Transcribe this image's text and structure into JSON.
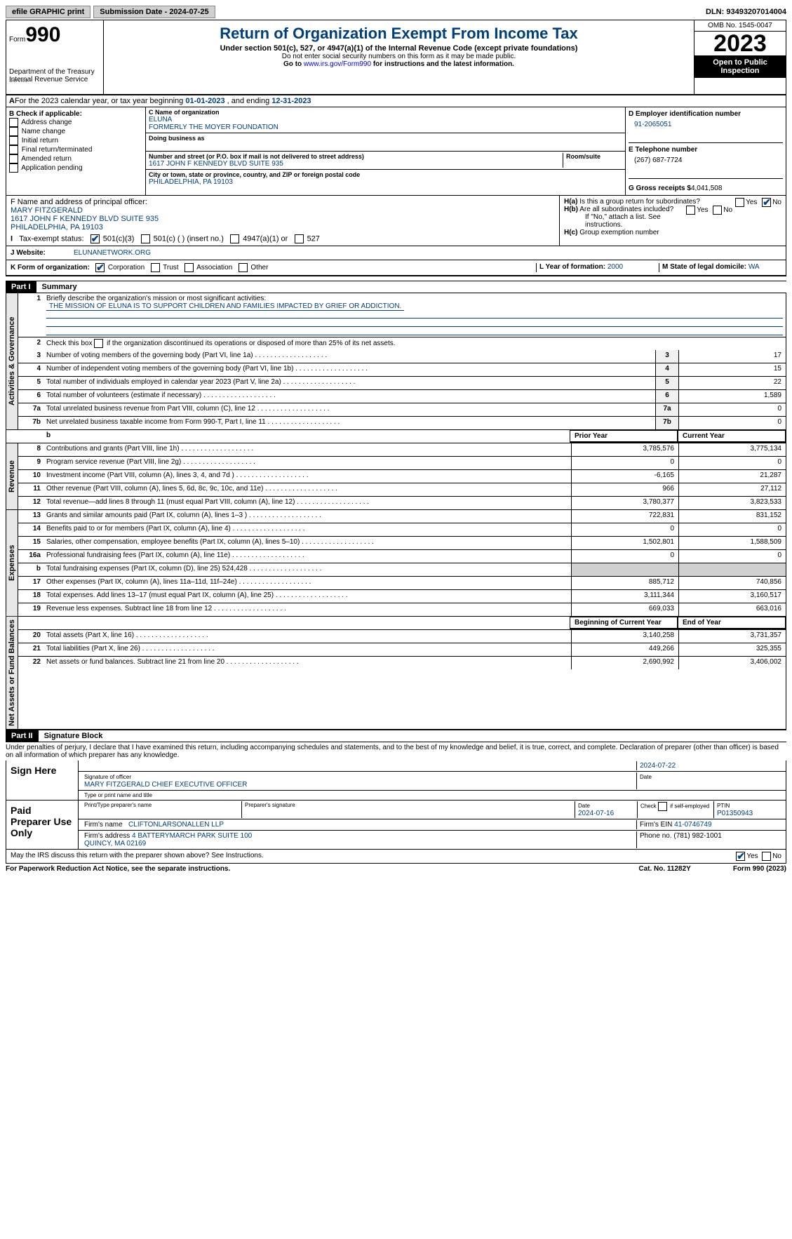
{
  "topbar": {
    "efile": "efile GRAPHIC print",
    "submission": "Submission Date - 2024-07-25",
    "dln": "DLN: 93493207014004"
  },
  "header": {
    "form": "990",
    "formPrefix": "Form",
    "dept": "Department of the Treasury\nInternal Revenue Service",
    "title": "Return of Organization Exempt From Income Tax",
    "sub": "Under section 501(c), 527, or 4947(a)(1) of the Internal Revenue Code (except private foundations)",
    "note1": "Do not enter social security numbers on this form as it may be made public.",
    "note2": "Go to ",
    "link": "www.irs.gov/Form990",
    "note3": " for instructions and the latest information.",
    "omb": "OMB No. 1545-0047",
    "year": "2023",
    "inspect": "Open to Public Inspection"
  },
  "A": {
    "prefix": "A",
    "text": "For the 2023 calendar year, or tax year beginning ",
    "d1": "01-01-2023",
    "mid": " , and ending ",
    "d2": "12-31-2023"
  },
  "B": {
    "label": "B Check if applicable:",
    "items": [
      "Address change",
      "Name change",
      "Initial return",
      "Final return/terminated",
      "Amended return",
      "Application pending"
    ]
  },
  "C": {
    "nameLabel": "C Name of organization",
    "name": "ELUNA\nFORMERLY THE MOYER FOUNDATION",
    "dba": "Doing business as",
    "addrLabel": "Number and street (or P.O. box if mail is not delivered to street address)",
    "addr": "1617 JOHN F KENNEDY BLVD SUITE 935",
    "room": "Room/suite",
    "cityLabel": "City or town, state or province, country, and ZIP or foreign postal code",
    "city": "PHILADELPHIA, PA  19103"
  },
  "D": {
    "label": "D Employer identification number",
    "val": "91-2065051"
  },
  "E": {
    "label": "E Telephone number",
    "val": "(267) 687-7724"
  },
  "G": {
    "label": "G Gross receipts $",
    "val": "4,041,508"
  },
  "F": {
    "label": "F  Name and address of principal officer:",
    "val": "MARY FITZGERALD\n1617 JOHN F KENNEDY BLVD SUITE 935\nPHILADELPHIA, PA  19103"
  },
  "H": {
    "a": "H(a)  Is this a group return for subordinates?",
    "b": "H(b)  Are all subordinates included?",
    "note": "If \"No,\" attach a list. See instructions.",
    "c": "H(c)  Group exemption number",
    "yes": "Yes",
    "no": "No"
  },
  "I": {
    "label": "I   Tax-exempt status:",
    "opts": [
      "501(c)(3)",
      "501(c) (  ) (insert no.)",
      "4947(a)(1) or",
      "527"
    ]
  },
  "J": {
    "label": "J   Website:",
    "val": "ELUNANETWORK.ORG"
  },
  "K": {
    "label": "K Form of organization:",
    "opts": [
      "Corporation",
      "Trust",
      "Association",
      "Other"
    ]
  },
  "L": {
    "label": "L Year of formation: ",
    "val": "2000"
  },
  "M": {
    "label": "M State of legal domicile: ",
    "val": "WA"
  },
  "part1": {
    "hdr": "Part I",
    "title": "Summary"
  },
  "gov": {
    "label": "Activities & Governance",
    "l1": "Briefly describe the organization's mission or most significant activities:",
    "mission": "THE MISSION OF ELUNA IS TO SUPPORT CHILDREN AND FAMILIES IMPACTED BY GRIEF OR ADDICTION.",
    "l2": "Check this box      if the organization discontinued its operations or disposed of more than 25% of its net assets.",
    "rows": [
      {
        "n": "3",
        "t": "Number of voting members of the governing body (Part VI, line 1a)",
        "v": "17"
      },
      {
        "n": "4",
        "t": "Number of independent voting members of the governing body (Part VI, line 1b)",
        "v": "15"
      },
      {
        "n": "5",
        "t": "Total number of individuals employed in calendar year 2023 (Part V, line 2a)",
        "v": "22"
      },
      {
        "n": "6",
        "t": "Total number of volunteers (estimate if necessary)",
        "v": "1,589"
      },
      {
        "n": "7a",
        "t": "Total unrelated business revenue from Part VIII, column (C), line 12",
        "v": "0"
      },
      {
        "n": "7b",
        "t": "Net unrelated business taxable income from Form 990-T, Part I, line 11",
        "v": "0"
      }
    ]
  },
  "colHdr": {
    "prior": "Prior Year",
    "current": "Current Year"
  },
  "rev": {
    "label": "Revenue",
    "rows": [
      {
        "n": "8",
        "t": "Contributions and grants (Part VIII, line 1h)",
        "p": "3,785,576",
        "c": "3,775,134"
      },
      {
        "n": "9",
        "t": "Program service revenue (Part VIII, line 2g)",
        "p": "0",
        "c": "0"
      },
      {
        "n": "10",
        "t": "Investment income (Part VIII, column (A), lines 3, 4, and 7d )",
        "p": "-6,165",
        "c": "21,287"
      },
      {
        "n": "11",
        "t": "Other revenue (Part VIII, column (A), lines 5, 6d, 8c, 9c, 10c, and 11e)",
        "p": "966",
        "c": "27,112"
      },
      {
        "n": "12",
        "t": "Total revenue—add lines 8 through 11 (must equal Part VIII, column (A), line 12)",
        "p": "3,780,377",
        "c": "3,823,533"
      }
    ]
  },
  "exp": {
    "label": "Expenses",
    "rows": [
      {
        "n": "13",
        "t": "Grants and similar amounts paid (Part IX, column (A), lines 1–3 )",
        "p": "722,831",
        "c": "831,152"
      },
      {
        "n": "14",
        "t": "Benefits paid to or for members (Part IX, column (A), line 4)",
        "p": "0",
        "c": "0"
      },
      {
        "n": "15",
        "t": "Salaries, other compensation, employee benefits (Part IX, column (A), lines 5–10)",
        "p": "1,502,801",
        "c": "1,588,509"
      },
      {
        "n": "16a",
        "t": "Professional fundraising fees (Part IX, column (A), line 11e)",
        "p": "0",
        "c": "0"
      },
      {
        "n": "b",
        "t": "Total fundraising expenses (Part IX, column (D), line 25) 524,428",
        "p": "",
        "c": "",
        "shade": true
      },
      {
        "n": "17",
        "t": "Other expenses (Part IX, column (A), lines 11a–11d, 11f–24e)",
        "p": "885,712",
        "c": "740,856"
      },
      {
        "n": "18",
        "t": "Total expenses. Add lines 13–17 (must equal Part IX, column (A), line 25)",
        "p": "3,111,344",
        "c": "3,160,517"
      },
      {
        "n": "19",
        "t": "Revenue less expenses. Subtract line 18 from line 12",
        "p": "669,033",
        "c": "663,016"
      }
    ]
  },
  "net": {
    "label": "Net Assets or Fund Balances",
    "hdr1": "Beginning of Current Year",
    "hdr2": "End of Year",
    "rows": [
      {
        "n": "20",
        "t": "Total assets (Part X, line 16)",
        "p": "3,140,258",
        "c": "3,731,357"
      },
      {
        "n": "21",
        "t": "Total liabilities (Part X, line 26)",
        "p": "449,266",
        "c": "325,355"
      },
      {
        "n": "22",
        "t": "Net assets or fund balances. Subtract line 21 from line 20",
        "p": "2,690,992",
        "c": "3,406,002"
      }
    ]
  },
  "part2": {
    "hdr": "Part II",
    "title": "Signature Block"
  },
  "penalty": "Under penalties of perjury, I declare that I have examined this return, including accompanying schedules and statements, and to the best of my knowledge and belief, it is true, correct, and complete. Declaration of preparer (other than officer) is based on all information of which preparer has any knowledge.",
  "sign": {
    "here": "Sign Here",
    "sigLabel": "Signature of officer",
    "officer": "MARY FITZGERALD  CHIEF EXECUTIVE OFFICER",
    "typeLabel": "Type or print name and title",
    "date": "2024-07-22",
    "dateLabel": "Date"
  },
  "prep": {
    "here": "Paid Preparer Use Only",
    "h1": "Print/Type preparer's name",
    "h2": "Preparer's signature",
    "h3": "Date",
    "date": "2024-07-16",
    "h4": "Check       if self-employed",
    "h5": "PTIN",
    "ptin": "P01350943",
    "firmL": "Firm's name",
    "firm": "CLIFTONLARSONALLEN LLP",
    "einL": "Firm's EIN",
    "ein": "41-0746749",
    "addrL": "Firm's address",
    "addr": "4 BATTERYMARCH PARK SUITE 100\nQUINCY, MA  02169",
    "phoneL": "Phone no.",
    "phone": "(781) 982-1001"
  },
  "discuss": "May the IRS discuss this return with the preparer shown above? See Instructions.",
  "foot": {
    "l": "For Paperwork Reduction Act Notice, see the separate instructions.",
    "m": "Cat. No. 11282Y",
    "r": "Form 990 (2023)"
  }
}
